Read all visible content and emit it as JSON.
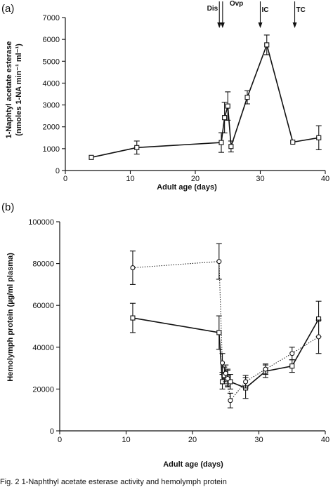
{
  "chart_data": [
    {
      "type": "line",
      "panel_label": "(a)",
      "xlabel": "Adult age (days)",
      "ylabel_line1": "1-Naphtyl acetate esterase",
      "ylabel_line2": "(nmoles 1-NA min⁻¹ ml⁻¹)",
      "xlim": [
        0,
        40
      ],
      "ylim": [
        0,
        7000
      ],
      "x_ticks": [
        0,
        10,
        20,
        30,
        40
      ],
      "y_ticks": [
        0,
        1000,
        2000,
        3000,
        4000,
        5000,
        6000,
        7000
      ],
      "annotations": [
        {
          "label": "Dis",
          "x": 23.7
        },
        {
          "label": "Ovp",
          "x": 24.2
        },
        {
          "label": "IC",
          "x": 30.0
        },
        {
          "label": "TC",
          "x": 35.3
        }
      ],
      "series": [
        {
          "marker": "square",
          "style": "solid",
          "x": [
            4,
            11,
            24,
            24.5,
            25,
            25.5,
            28,
            31,
            35,
            39
          ],
          "y": [
            600,
            1050,
            1280,
            2420,
            2950,
            1100,
            3350,
            5750,
            1300,
            1500
          ],
          "err": [
            0,
            300,
            450,
            700,
            650,
            250,
            300,
            450,
            0,
            550
          ]
        }
      ]
    },
    {
      "type": "line",
      "panel_label": "(b)",
      "xlabel": "Adult age (days)",
      "ylabel": "Hemolymph protein (µg/ml plasma)",
      "xlim": [
        0,
        40
      ],
      "ylim": [
        0,
        100000
      ],
      "x_ticks": [
        0,
        10,
        20,
        30,
        40
      ],
      "y_ticks": [
        0,
        20000,
        40000,
        60000,
        80000,
        100000
      ],
      "series": [
        {
          "marker": "square",
          "style": "solid",
          "x": [
            11,
            24,
            24.5,
            24.8,
            25.3,
            25.7,
            28,
            31,
            35,
            39
          ],
          "y": [
            54000,
            47000,
            23500,
            26500,
            25500,
            23500,
            20500,
            28500,
            31000,
            53500
          ],
          "err": [
            7000,
            8000,
            3500,
            4000,
            4000,
            3500,
            5000,
            3000,
            3000,
            8500
          ]
        },
        {
          "marker": "circle",
          "style": "dotted",
          "x": [
            11,
            24,
            24.5,
            25,
            25.3,
            25.7,
            28,
            31,
            35,
            39
          ],
          "y": [
            78000,
            81000,
            32500,
            27500,
            25000,
            14500,
            23500,
            29500,
            37000,
            45000
          ],
          "err": [
            8000,
            8500,
            4500,
            4000,
            4000,
            3500,
            3000,
            2500,
            3000,
            8000
          ]
        }
      ]
    }
  ],
  "caption_fragment": "Fig. 2   1-Naphthyl acetate esterase activity and hemolymph protein"
}
